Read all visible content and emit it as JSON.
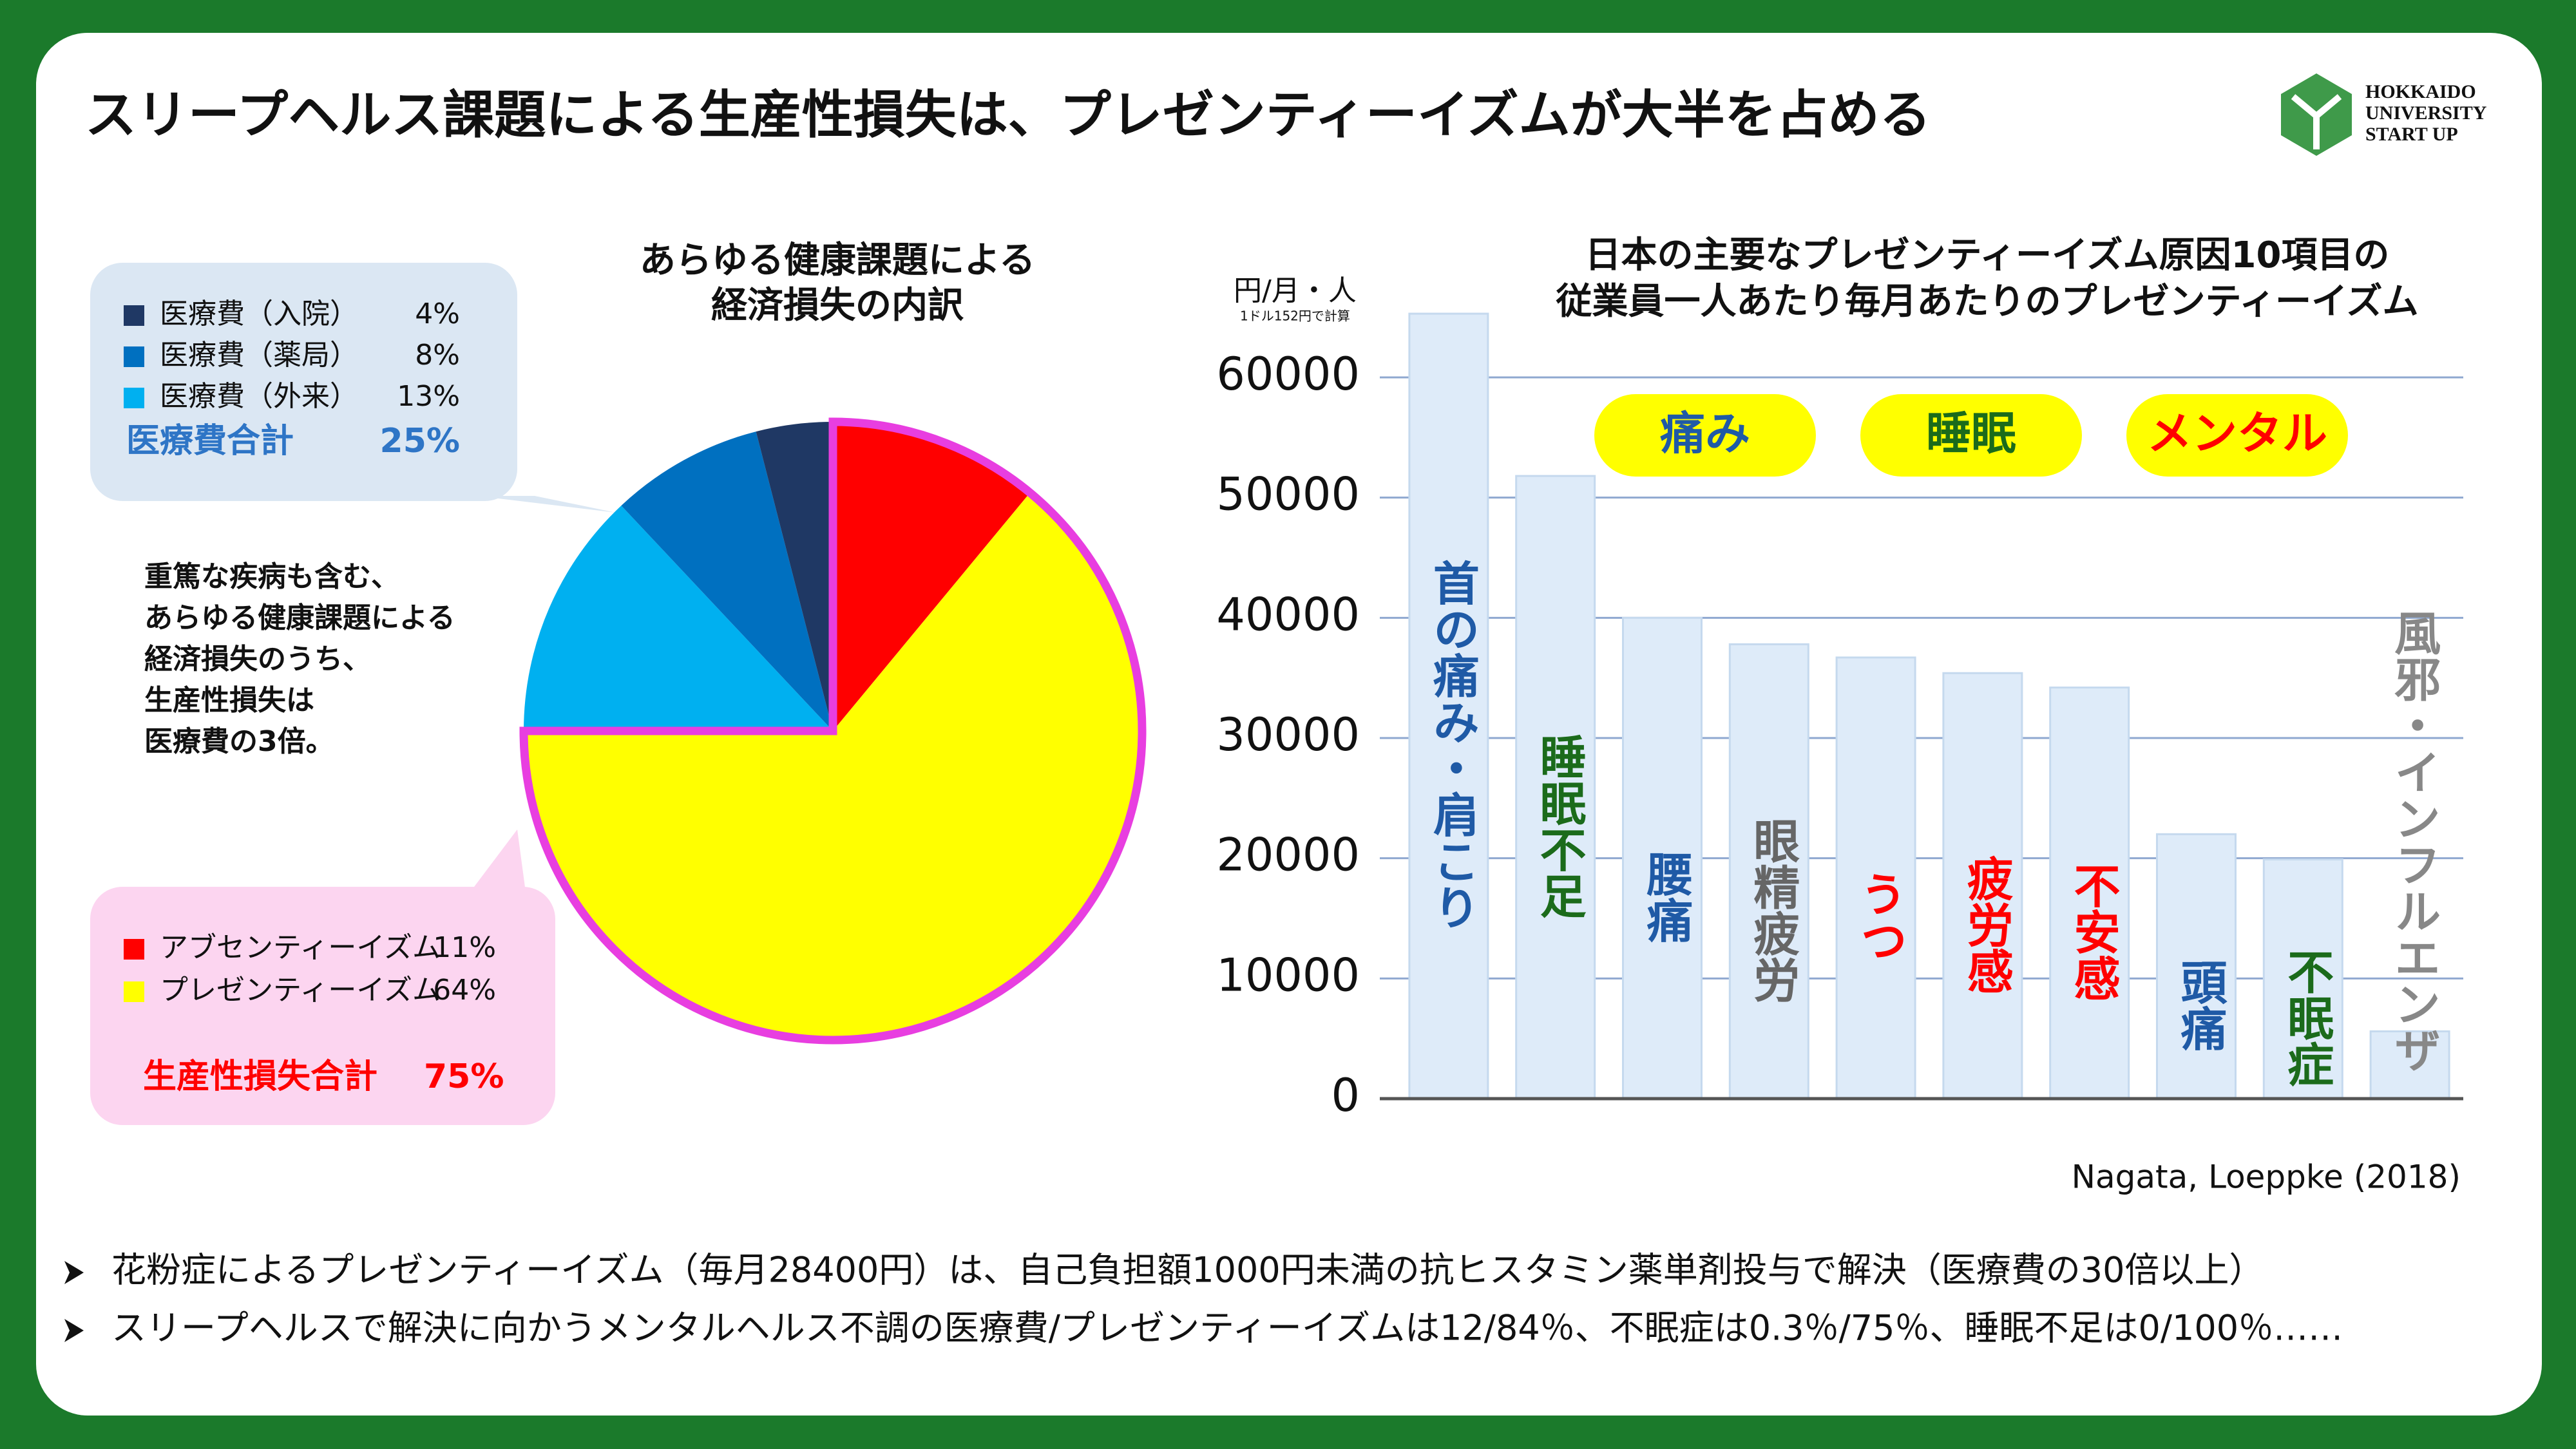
{
  "header": {
    "title": "スリープヘルス課題による生産性損失は、プレゼンティーイズムが大半を占める",
    "logo": [
      "HOKKAIDO",
      "UNIVERSITY",
      "START UP"
    ]
  },
  "chart_data": [
    {
      "type": "pie",
      "title": [
        "あらゆる健康課題による",
        "経済損失の内訳"
      ],
      "categories": [
        "アブセンティーイズム",
        "プレゼンティーイズム",
        "医療費（外来）",
        "医療費（薬局）",
        "医療費（入院）"
      ],
      "values": [
        11,
        64,
        13,
        8,
        4
      ],
      "value_labels": [
        "11%",
        "64%",
        "13%",
        "8%",
        "4%"
      ],
      "colors": [
        "#ff0000",
        "#ffff00",
        "#00b0f0",
        "#0070c0",
        "#1f3864"
      ],
      "totals": [
        {
          "label": "医療費合計",
          "value_label": "25%",
          "color": "#2e75c6"
        },
        {
          "label": "生産性損失合計",
          "value_label": "75%",
          "color": "#ff0000"
        }
      ],
      "highlight_color": "#e83ee0",
      "note": [
        "重篤な疾病も含む、",
        "あらゆる健康課題による",
        "経済損失のうち、",
        "生産性損失は",
        "医療費の3倍。"
      ]
    },
    {
      "type": "bar",
      "title": [
        "日本の主要なプレゼンティーイズム原因10項目の",
        "従業員一人あたり毎月あたりのプレゼンティーイズム"
      ],
      "y_label": "円/月・人",
      "y_note": "1ドル152円で計算",
      "categories": [
        "首の痛み・肩こり",
        "睡眠不足",
        "腰痛",
        "眼精疲労",
        "うつ",
        "疲労感",
        "不安感",
        "頭痛",
        "不眠症",
        "風邪・インフルエンザ"
      ],
      "values": [
        65300,
        51800,
        40000,
        37800,
        36700,
        35400,
        34200,
        22000,
        19900,
        5600
      ],
      "color": "#deebf9",
      "label_colors": [
        "#1f5aa6",
        "#1b6b1b",
        "#1f5aa6",
        "#666666",
        "#ff0000",
        "#ff0000",
        "#ff0000",
        "#1f5aa6",
        "#1b6b1b",
        "#888888"
      ],
      "ylim": [
        0,
        66000
      ],
      "yticks": [
        0,
        10000,
        20000,
        30000,
        40000,
        50000,
        60000
      ],
      "grid": true,
      "annotations": [
        {
          "text": "痛み",
          "color": "#1f5aa6"
        },
        {
          "text": "睡眠",
          "color": "#1b6b1b"
        },
        {
          "text": "メンタル",
          "color": "#ff0000"
        }
      ],
      "source": "Nagata, Loeppke (2018)"
    }
  ],
  "bullets": [
    "花粉症によるプレゼンティーイズム（毎月28400円）は、自己負担額1000円未満の抗ヒスタミン薬単剤投与で解決（医療費の30倍以上）",
    "スリープヘルスで解決に向かうメンタルヘルス不調の医療費/プレゼンティーイズムは12/84％、不眠症は0.3％/75％、睡眠不足は0/100％……"
  ]
}
